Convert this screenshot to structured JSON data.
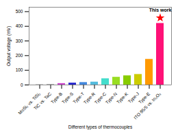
{
  "chart_data": {
    "type": "bar",
    "categories": [
      "MoSi₂ vs. TiSi₂",
      "TiC vs. TaC",
      "Type-B",
      "Type-S",
      "Type-T",
      "Type-R",
      "Type-C",
      "Type-N",
      "Type-K",
      "Type-J",
      "Type-E",
      "ITO 95/5 vs. In₂O₃"
    ],
    "values": [
      3,
      4,
      10,
      13,
      17,
      20,
      43,
      53,
      63,
      72,
      175,
      420
    ],
    "colors": [
      "#b0b0b0",
      "#a0a0a0",
      "#cc44cc",
      "#2222cc",
      "#4488dd",
      "#55bbdd",
      "#44ddcc",
      "#99dd22",
      "#88cc00",
      "#cccc00",
      "#ff9900",
      "#ff1177"
    ],
    "xlabel": "Different types of thermocouples",
    "ylabel": "Output voltage (mV)",
    "ylim": [
      0,
      530
    ],
    "yticks": [
      0,
      100,
      200,
      300,
      400,
      500
    ],
    "annotation": {
      "text": "This work",
      "marker": "star",
      "color": "#ff0000"
    }
  }
}
